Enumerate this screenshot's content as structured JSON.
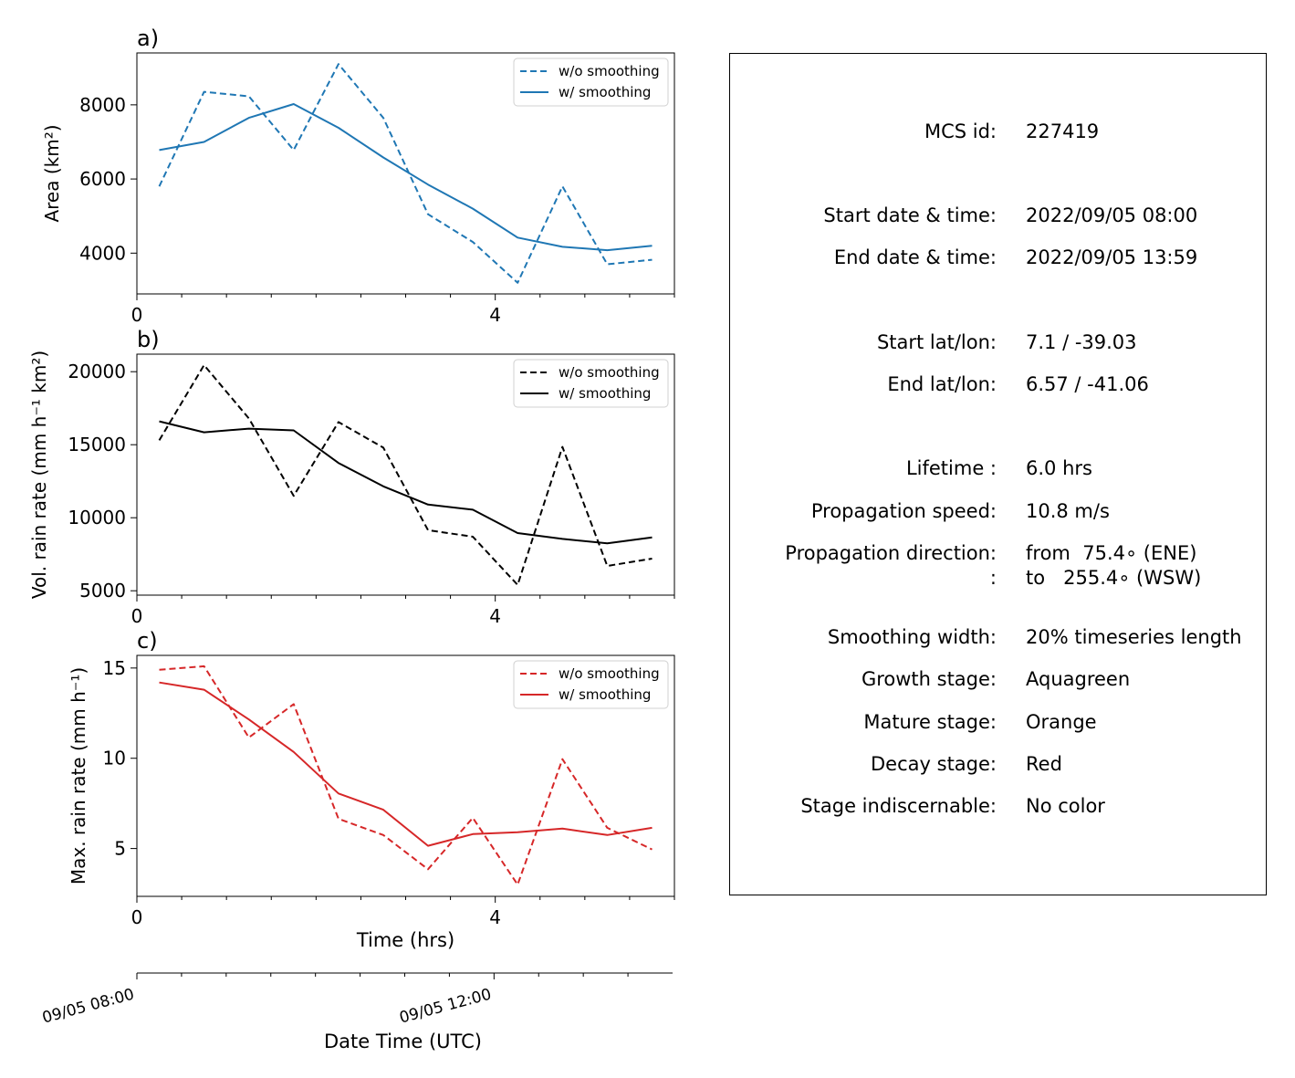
{
  "chart_data": [
    {
      "type": "line",
      "panel_label": "a)",
      "ylabel": "Area  (km²)",
      "xlabel": "",
      "xlim": [
        0,
        6.0
      ],
      "ylim": [
        2900,
        9400
      ],
      "xticks": [
        0,
        4
      ],
      "yticks": [
        4000,
        6000,
        8000
      ],
      "color": "#1f77b4",
      "legend": "top-right",
      "x": [
        0.25,
        0.75,
        1.25,
        1.75,
        2.25,
        2.75,
        3.25,
        3.75,
        4.25,
        4.75,
        5.25,
        5.75
      ],
      "series": [
        {
          "name": "w/o smoothing",
          "style": "dashed",
          "values": [
            5800,
            8350,
            8230,
            6780,
            9100,
            7650,
            5050,
            4300,
            3200,
            5800,
            3700,
            3820
          ]
        },
        {
          "name": "w/ smoothing",
          "style": "solid",
          "values": [
            6780,
            7000,
            7650,
            8020,
            7380,
            6580,
            5850,
            5200,
            4420,
            4170,
            4080,
            4200
          ]
        }
      ]
    },
    {
      "type": "line",
      "panel_label": "b)",
      "ylabel": "Vol. rain rate (mm h⁻¹ km²)",
      "xlabel": "",
      "xlim": [
        0,
        6.0
      ],
      "ylim": [
        4700,
        21200
      ],
      "xticks": [
        0,
        4
      ],
      "yticks": [
        5000,
        10000,
        15000,
        20000
      ],
      "color": "#000000",
      "legend": "top-right",
      "x": [
        0.25,
        0.75,
        1.25,
        1.75,
        2.25,
        2.75,
        3.25,
        3.75,
        4.25,
        4.75,
        5.25,
        5.75
      ],
      "series": [
        {
          "name": "w/o smoothing",
          "style": "dashed",
          "values": [
            15300,
            20450,
            16800,
            11500,
            16550,
            14800,
            9150,
            8700,
            5400,
            14850,
            6700,
            7200
          ]
        },
        {
          "name": "w/ smoothing",
          "style": "solid",
          "values": [
            16600,
            15850,
            16100,
            15980,
            13750,
            12150,
            10900,
            10550,
            8950,
            8550,
            8250,
            8650
          ]
        }
      ]
    },
    {
      "type": "line",
      "panel_label": "c)",
      "ylabel": "Max. rain rate  (mm h⁻¹)",
      "xlabel": "Time (hrs)",
      "xlim": [
        0,
        6.0
      ],
      "ylim": [
        2.35,
        15.7
      ],
      "xticks": [
        0,
        4
      ],
      "yticks": [
        5,
        10,
        15
      ],
      "color": "#d62728",
      "legend": "top-right",
      "x": [
        0.25,
        0.75,
        1.25,
        1.75,
        2.25,
        2.75,
        3.25,
        3.75,
        4.25,
        4.75,
        5.25,
        5.75
      ],
      "series": [
        {
          "name": "w/o smoothing",
          "style": "dashed",
          "values": [
            14.9,
            15.1,
            11.15,
            13.0,
            6.65,
            5.75,
            3.85,
            6.7,
            3.0,
            9.95,
            6.15,
            4.95
          ]
        },
        {
          "name": "w/ smoothing",
          "style": "solid",
          "values": [
            14.2,
            13.8,
            12.15,
            10.35,
            8.05,
            7.15,
            5.15,
            5.8,
            5.9,
            6.1,
            5.75,
            6.15
          ]
        }
      ]
    }
  ],
  "datetime_axis": {
    "label": "Date Time (UTC)",
    "ticks": [
      "09/05 08:00",
      "09/05 12:00"
    ]
  },
  "info_panel": {
    "rows": [
      {
        "label": "MCS id:",
        "value": "227419"
      },
      {
        "label": "Start date & time:",
        "value": "2022/09/05 08:00"
      },
      {
        "label": "End date & time:",
        "value": "2022/09/05 13:59"
      },
      {
        "label": "Start lat/lon:",
        "value": "7.1 / -39.03"
      },
      {
        "label": "End lat/lon:",
        "value": "6.57 / -41.06"
      },
      {
        "label": "Lifetime :",
        "value": "6.0 hrs"
      },
      {
        "label": "Propagation speed:",
        "value": "10.8 m/s"
      },
      {
        "label": "Propagation direction:",
        "value": "from  75.4∘ (ENE)"
      },
      {
        "label": ":",
        "value": "to   255.4∘ (WSW)"
      },
      {
        "label": "Smoothing width:",
        "value": "20% timeseries length"
      },
      {
        "label": "Growth stage:",
        "value": "Aquagreen"
      },
      {
        "label": "Mature stage:",
        "value": "Orange"
      },
      {
        "label": "Decay stage:",
        "value": "Red"
      },
      {
        "label": "Stage indiscernable:",
        "value": "No color"
      }
    ]
  }
}
